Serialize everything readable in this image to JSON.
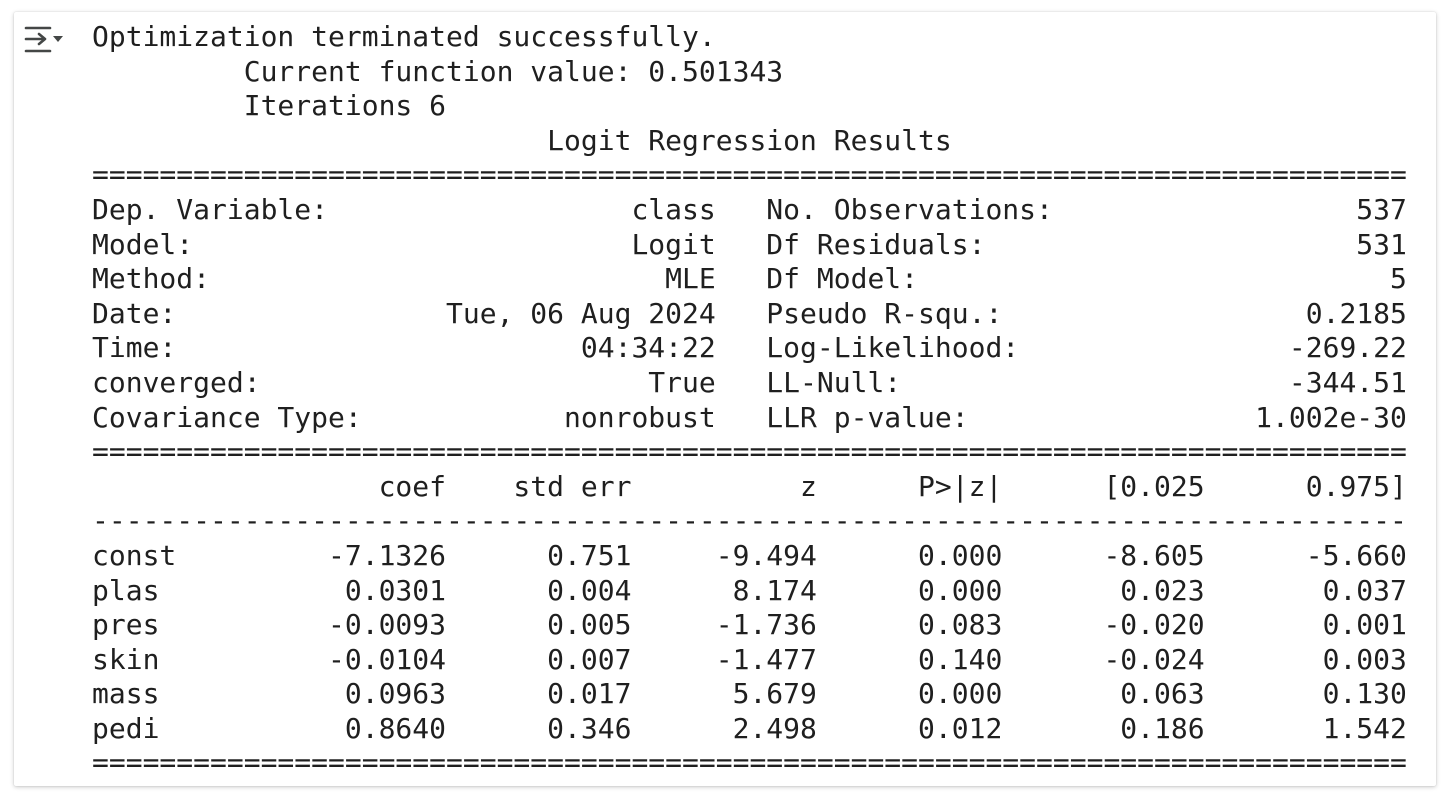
{
  "output_toggle": {
    "icon": "collapse-output-icon"
  },
  "lines": [
    "Optimization terminated successfully.",
    "         Current function value: 0.501343",
    "         Iterations 6",
    "                           Logit Regression Results                           ",
    "==============================================================================",
    "Dep. Variable:                  class   No. Observations:                  537",
    "Model:                          Logit   Df Residuals:                      531",
    "Method:                           MLE   Df Model:                            5",
    "Date:                Tue, 06 Aug 2024   Pseudo R-squ.:                  0.2185",
    "Time:                        04:34:22   Log-Likelihood:                -269.22",
    "converged:                       True   LL-Null:                       -344.51",
    "Covariance Type:            nonrobust   LLR p-value:                 1.002e-30",
    "==============================================================================",
    "                 coef    std err          z      P>|z|      [0.025      0.975]",
    "------------------------------------------------------------------------------",
    "const         -7.1326      0.751     -9.494      0.000      -8.605      -5.660",
    "plas           0.0301      0.004      8.174      0.000       0.023       0.037",
    "pres          -0.0093      0.005     -1.736      0.083      -0.020       0.001",
    "skin          -0.0104      0.007     -1.477      0.140      -0.024       0.003",
    "mass           0.0963      0.017      5.679      0.000       0.063       0.130",
    "pedi           0.8640      0.346      2.498      0.012       0.186       1.542",
    "=============================================================================="
  ]
}
